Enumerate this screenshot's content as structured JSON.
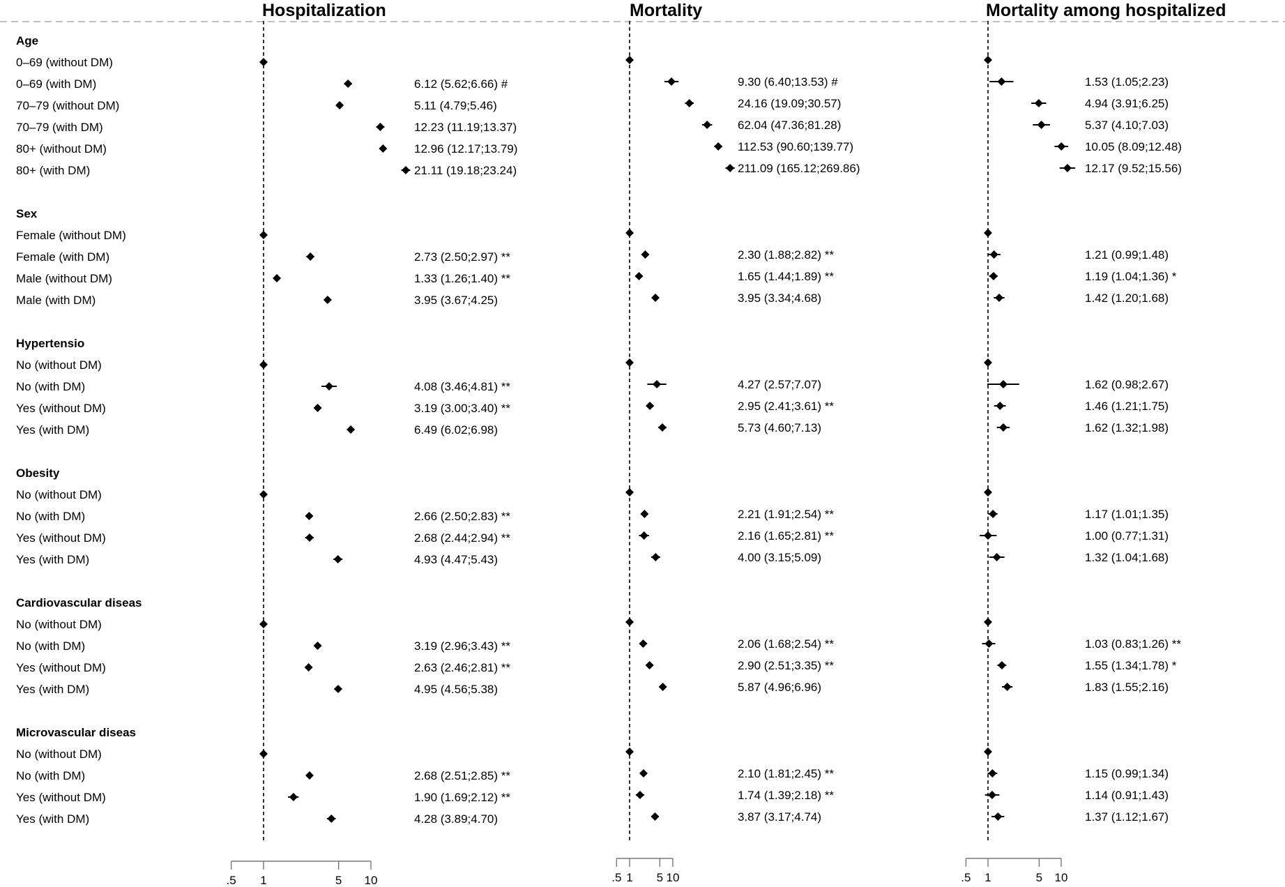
{
  "chart_data": {
    "type": "forest",
    "x_scale": "log",
    "reference_line": 1,
    "xlim": [
      0.5,
      10
    ],
    "x_ticks": [
      0.5,
      1,
      5,
      10
    ],
    "x_tick_labels": [
      ".5",
      "1",
      "5",
      "10"
    ],
    "panels": [
      {
        "title": "Hospitalization",
        "groups": [
          {
            "header": "Age",
            "rows": [
              {
                "label": "0–69 (without DM)",
                "value": 1,
                "ci": null,
                "text": ""
              },
              {
                "label": "0–69 (with DM)",
                "value": 6.12,
                "ci": [
                  5.62,
                  6.66
                ],
                "text": "6.12 (5.62;6.66) #"
              },
              {
                "label": "70–79 (without DM)",
                "value": 5.11,
                "ci": [
                  4.79,
                  5.46
                ],
                "text": "5.11 (4.79;5.46)"
              },
              {
                "label": "70–79 (with DM)",
                "value": 12.23,
                "ci": [
                  11.19,
                  13.37
                ],
                "text": "12.23 (11.19;13.37)"
              },
              {
                "label": "80+ (without DM)",
                "value": 12.96,
                "ci": [
                  12.17,
                  13.79
                ],
                "text": "12.96 (12.17;13.79)"
              },
              {
                "label": "80+ (with DM)",
                "value": 21.11,
                "ci": [
                  19.18,
                  23.24
                ],
                "text": "21.11 (19.18;23.24)"
              }
            ]
          },
          {
            "header": "Sex",
            "rows": [
              {
                "label": "Female (without DM)",
                "value": 1,
                "ci": null,
                "text": ""
              },
              {
                "label": "Female (with DM)",
                "value": 2.73,
                "ci": [
                  2.5,
                  2.97
                ],
                "text": "2.73 (2.50;2.97) **"
              },
              {
                "label": "Male (without DM)",
                "value": 1.33,
                "ci": [
                  1.26,
                  1.4
                ],
                "text": "1.33 (1.26;1.40) **"
              },
              {
                "label": "Male (with DM)",
                "value": 3.95,
                "ci": [
                  3.67,
                  4.25
                ],
                "text": "3.95 (3.67;4.25)"
              }
            ]
          },
          {
            "header": "Hypertensio",
            "rows": [
              {
                "label": "No (without DM)",
                "value": 1,
                "ci": null,
                "text": ""
              },
              {
                "label": "No (with DM)",
                "value": 4.08,
                "ci": [
                  3.46,
                  4.81
                ],
                "text": "4.08 (3.46;4.81) **"
              },
              {
                "label": "Yes (without DM)",
                "value": 3.19,
                "ci": [
                  3.0,
                  3.4
                ],
                "text": "3.19 (3.00;3.40) **"
              },
              {
                "label": "Yes (with DM)",
                "value": 6.49,
                "ci": [
                  6.02,
                  6.98
                ],
                "text": "6.49 (6.02;6.98)"
              }
            ]
          },
          {
            "header": "Obesity",
            "rows": [
              {
                "label": "No (without DM)",
                "value": 1,
                "ci": null,
                "text": ""
              },
              {
                "label": "No (with DM)",
                "value": 2.66,
                "ci": [
                  2.5,
                  2.83
                ],
                "text": "2.66 (2.50;2.83) **"
              },
              {
                "label": "Yes (without DM)",
                "value": 2.68,
                "ci": [
                  2.44,
                  2.94
                ],
                "text": "2.68 (2.44;2.94) **"
              },
              {
                "label": "Yes (with DM)",
                "value": 4.93,
                "ci": [
                  4.47,
                  5.43
                ],
                "text": "4.93 (4.47;5.43)"
              }
            ]
          },
          {
            "header": "Cardiovascular diseas",
            "rows": [
              {
                "label": "No (without DM)",
                "value": 1,
                "ci": null,
                "text": ""
              },
              {
                "label": "No (with DM)",
                "value": 3.19,
                "ci": [
                  2.96,
                  3.43
                ],
                "text": "3.19 (2.96;3.43) **"
              },
              {
                "label": "Yes (without DM)",
                "value": 2.63,
                "ci": [
                  2.46,
                  2.81
                ],
                "text": "2.63 (2.46;2.81) **"
              },
              {
                "label": "Yes (with DM)",
                "value": 4.95,
                "ci": [
                  4.56,
                  5.38
                ],
                "text": "4.95 (4.56;5.38)"
              }
            ]
          },
          {
            "header": "Microvascular diseas",
            "rows": [
              {
                "label": "No (without DM)",
                "value": 1,
                "ci": null,
                "text": ""
              },
              {
                "label": "No (with DM)",
                "value": 2.68,
                "ci": [
                  2.51,
                  2.85
                ],
                "text": "2.68 (2.51;2.85) **"
              },
              {
                "label": "Yes (without DM)",
                "value": 1.9,
                "ci": [
                  1.69,
                  2.12
                ],
                "text": "1.90 (1.69;2.12) **"
              },
              {
                "label": "Yes (with DM)",
                "value": 4.28,
                "ci": [
                  3.89,
                  4.7
                ],
                "text": "4.28 (3.89;4.70)"
              }
            ]
          }
        ]
      },
      {
        "title": "Mortality",
        "groups": [
          {
            "header": "Age",
            "rows": [
              {
                "label": "0–69 (without DM)",
                "value": 1,
                "ci": null,
                "text": ""
              },
              {
                "label": "0–69 (with DM)",
                "value": 9.3,
                "ci": [
                  6.4,
                  13.53
                ],
                "text": "9.30 (6.40;13.53) #"
              },
              {
                "label": "70–79 (without DM)",
                "value": 24.16,
                "ci": [
                  19.09,
                  30.57
                ],
                "text": "24.16 (19.09;30.57)"
              },
              {
                "label": "70–79 (with DM)",
                "value": 62.04,
                "ci": [
                  47.36,
                  81.28
                ],
                "text": "62.04 (47.36;81.28)"
              },
              {
                "label": "80+ (without DM)",
                "value": 112.53,
                "ci": [
                  90.6,
                  139.77
                ],
                "text": "112.53 (90.60;139.77)"
              },
              {
                "label": "80+ (with DM)",
                "value": 211.09,
                "ci": [
                  165.12,
                  269.86
                ],
                "text": "211.09 (165.12;269.86)"
              }
            ]
          },
          {
            "header": "Sex",
            "rows": [
              {
                "label": "Female (without DM)",
                "value": 1,
                "ci": null,
                "text": ""
              },
              {
                "label": "Female (with DM)",
                "value": 2.3,
                "ci": [
                  1.88,
                  2.82
                ],
                "text": "2.30 (1.88;2.82) **"
              },
              {
                "label": "Male (without DM)",
                "value": 1.65,
                "ci": [
                  1.44,
                  1.89
                ],
                "text": "1.65 (1.44;1.89) **"
              },
              {
                "label": "Male (with DM)",
                "value": 3.95,
                "ci": [
                  3.34,
                  4.68
                ],
                "text": "3.95 (3.34;4.68)"
              }
            ]
          },
          {
            "header": "Hypertensio",
            "rows": [
              {
                "label": "No (without DM)",
                "value": 1,
                "ci": null,
                "text": ""
              },
              {
                "label": "No (with DM)",
                "value": 4.27,
                "ci": [
                  2.57,
                  7.07
                ],
                "text": "4.27 (2.57;7.07)"
              },
              {
                "label": "Yes (without DM)",
                "value": 2.95,
                "ci": [
                  2.41,
                  3.61
                ],
                "text": "2.95 (2.41;3.61) **"
              },
              {
                "label": "Yes (with DM)",
                "value": 5.73,
                "ci": [
                  4.6,
                  7.13
                ],
                "text": "5.73 (4.60;7.13)"
              }
            ]
          },
          {
            "header": "Obesity",
            "rows": [
              {
                "label": "No (without DM)",
                "value": 1,
                "ci": null,
                "text": ""
              },
              {
                "label": "No (with DM)",
                "value": 2.21,
                "ci": [
                  1.91,
                  2.54
                ],
                "text": "2.21 (1.91;2.54) **"
              },
              {
                "label": "Yes (without DM)",
                "value": 2.16,
                "ci": [
                  1.65,
                  2.81
                ],
                "text": "2.16 (1.65;2.81) **"
              },
              {
                "label": "Yes (with DM)",
                "value": 4.0,
                "ci": [
                  3.15,
                  5.09
                ],
                "text": "4.00 (3.15;5.09)"
              }
            ]
          },
          {
            "header": "Cardiovascular diseas",
            "rows": [
              {
                "label": "No (without DM)",
                "value": 1,
                "ci": null,
                "text": ""
              },
              {
                "label": "No (with DM)",
                "value": 2.06,
                "ci": [
                  1.68,
                  2.54
                ],
                "text": "2.06 (1.68;2.54) **"
              },
              {
                "label": "Yes (without DM)",
                "value": 2.9,
                "ci": [
                  2.51,
                  3.35
                ],
                "text": "2.90 (2.51;3.35) **"
              },
              {
                "label": "Yes (with DM)",
                "value": 5.87,
                "ci": [
                  4.96,
                  6.96
                ],
                "text": "5.87 (4.96;6.96)"
              }
            ]
          },
          {
            "header": "Microvascular diseas",
            "rows": [
              {
                "label": "No (without DM)",
                "value": 1,
                "ci": null,
                "text": ""
              },
              {
                "label": "No (with DM)",
                "value": 2.1,
                "ci": [
                  1.81,
                  2.45
                ],
                "text": "2.10 (1.81;2.45) **"
              },
              {
                "label": "Yes (without DM)",
                "value": 1.74,
                "ci": [
                  1.39,
                  2.18
                ],
                "text": "1.74 (1.39;2.18) **"
              },
              {
                "label": "Yes (with DM)",
                "value": 3.87,
                "ci": [
                  3.17,
                  4.74
                ],
                "text": "3.87 (3.17;4.74)"
              }
            ]
          }
        ]
      },
      {
        "title": "Mortality among hospitalized",
        "groups": [
          {
            "header": "Age",
            "rows": [
              {
                "label": "0–69 (without DM)",
                "value": 1,
                "ci": null,
                "text": ""
              },
              {
                "label": "0–69 (with DM)",
                "value": 1.53,
                "ci": [
                  1.05,
                  2.23
                ],
                "text": "1.53 (1.05;2.23)"
              },
              {
                "label": "70–79 (without DM)",
                "value": 4.94,
                "ci": [
                  3.91,
                  6.25
                ],
                "text": "4.94 (3.91;6.25)"
              },
              {
                "label": "70–79 (with DM)",
                "value": 5.37,
                "ci": [
                  4.1,
                  7.03
                ],
                "text": "5.37 (4.10;7.03)"
              },
              {
                "label": "80+ (without DM)",
                "value": 10.05,
                "ci": [
                  8.09,
                  12.48
                ],
                "text": "10.05 (8.09;12.48)"
              },
              {
                "label": "80+ (with DM)",
                "value": 12.17,
                "ci": [
                  9.52,
                  15.56
                ],
                "text": "12.17 (9.52;15.56)"
              }
            ]
          },
          {
            "header": "Sex",
            "rows": [
              {
                "label": "Female (without DM)",
                "value": 1,
                "ci": null,
                "text": ""
              },
              {
                "label": "Female (with DM)",
                "value": 1.21,
                "ci": [
                  0.99,
                  1.48
                ],
                "text": "1.21 (0.99;1.48)"
              },
              {
                "label": "Male (without DM)",
                "value": 1.19,
                "ci": [
                  1.04,
                  1.36
                ],
                "text": "1.19 (1.04;1.36) *"
              },
              {
                "label": "Male (with DM)",
                "value": 1.42,
                "ci": [
                  1.2,
                  1.68
                ],
                "text": "1.42 (1.20;1.68)"
              }
            ]
          },
          {
            "header": "Hypertensio",
            "rows": [
              {
                "label": "No (without DM)",
                "value": 1,
                "ci": null,
                "text": ""
              },
              {
                "label": "No (with DM)",
                "value": 1.62,
                "ci": [
                  0.98,
                  2.67
                ],
                "text": "1.62 (0.98;2.67)"
              },
              {
                "label": "Yes (without DM)",
                "value": 1.46,
                "ci": [
                  1.21,
                  1.75
                ],
                "text": "1.46 (1.21;1.75)"
              },
              {
                "label": "Yes (with DM)",
                "value": 1.62,
                "ci": [
                  1.32,
                  1.98
                ],
                "text": "1.62 (1.32;1.98)"
              }
            ]
          },
          {
            "header": "Obesity",
            "rows": [
              {
                "label": "No (without DM)",
                "value": 1,
                "ci": null,
                "text": ""
              },
              {
                "label": "No (with DM)",
                "value": 1.17,
                "ci": [
                  1.01,
                  1.35
                ],
                "text": "1.17 (1.01;1.35)"
              },
              {
                "label": "Yes (without DM)",
                "value": 1.0,
                "ci": [
                  0.77,
                  1.31
                ],
                "text": "1.00 (0.77;1.31)"
              },
              {
                "label": "Yes (with DM)",
                "value": 1.32,
                "ci": [
                  1.04,
                  1.68
                ],
                "text": "1.32 (1.04;1.68)"
              }
            ]
          },
          {
            "header": "Cardiovascular diseas",
            "rows": [
              {
                "label": "No (without DM)",
                "value": 1,
                "ci": null,
                "text": ""
              },
              {
                "label": "No (with DM)",
                "value": 1.03,
                "ci": [
                  0.83,
                  1.26
                ],
                "text": "1.03 (0.83;1.26) **"
              },
              {
                "label": "Yes (without DM)",
                "value": 1.55,
                "ci": [
                  1.34,
                  1.78
                ],
                "text": "1.55 (1.34;1.78) *"
              },
              {
                "label": "Yes (with DM)",
                "value": 1.83,
                "ci": [
                  1.55,
                  2.16
                ],
                "text": "1.83 (1.55;2.16)"
              }
            ]
          },
          {
            "header": "Microvascular diseas",
            "rows": [
              {
                "label": "No (without DM)",
                "value": 1,
                "ci": null,
                "text": ""
              },
              {
                "label": "No (with DM)",
                "value": 1.15,
                "ci": [
                  0.99,
                  1.34
                ],
                "text": "1.15 (0.99;1.34)"
              },
              {
                "label": "Yes (without DM)",
                "value": 1.14,
                "ci": [
                  0.91,
                  1.43
                ],
                "text": "1.14 (0.91;1.43)"
              },
              {
                "label": "Yes (with DM)",
                "value": 1.37,
                "ci": [
                  1.12,
                  1.67
                ],
                "text": "1.37 (1.12;1.67)"
              }
            ]
          }
        ]
      }
    ]
  }
}
